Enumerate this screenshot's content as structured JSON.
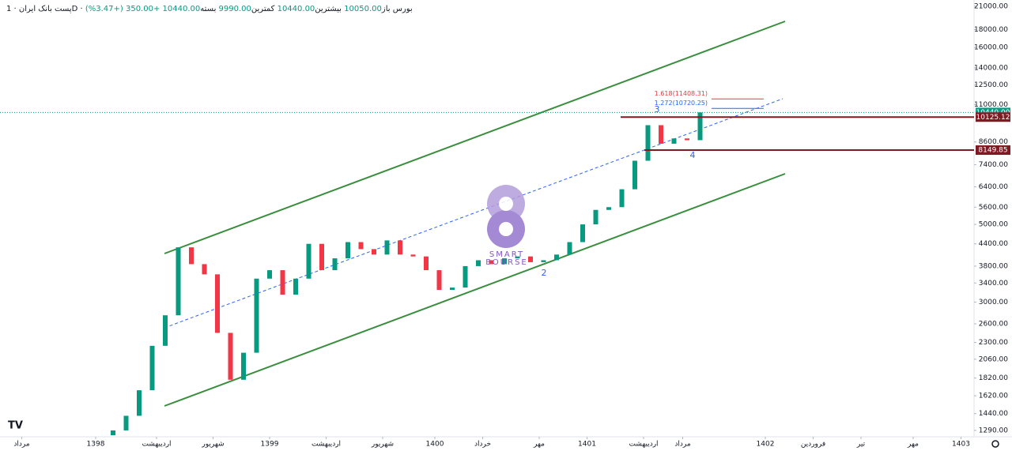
{
  "header": {
    "symbol": "پست بانک ایران",
    "interval": "1D",
    "exchange": "بورس",
    "ohlc": [
      {
        "label": "باز",
        "value": "10050.00"
      },
      {
        "label": "بیشترین",
        "value": "10440.00"
      },
      {
        "label": "کمترین",
        "value": "9990.00"
      },
      {
        "label": "بسته",
        "value": "10440.00"
      }
    ],
    "change": "+350.00 (+3.47%)"
  },
  "chart_data": {
    "type": "candlestick",
    "log_scale": true,
    "grid": false,
    "up_color": "#089981",
    "down_color": "#f23645",
    "xlim": [
      0,
      224
    ],
    "ylim": [
      1237,
      21870
    ],
    "xticks": [
      {
        "value": 5,
        "label": "مرداد"
      },
      {
        "value": 22,
        "label": "1398"
      },
      {
        "value": 36,
        "label": "اردیبهشت"
      },
      {
        "value": 49,
        "label": "شهریور"
      },
      {
        "value": 62,
        "label": "1399"
      },
      {
        "value": 75,
        "label": "اردیبهشت"
      },
      {
        "value": 88,
        "label": "شهریور"
      },
      {
        "value": 100,
        "label": "1400"
      },
      {
        "value": 111,
        "label": "خرداد"
      },
      {
        "value": 124,
        "label": "مهر"
      },
      {
        "value": 135,
        "label": "1401"
      },
      {
        "value": 148,
        "label": "اردیبهشت"
      },
      {
        "value": 157,
        "label": "مرداد"
      },
      {
        "value": 176,
        "label": "1402"
      },
      {
        "value": 187,
        "label": "فروردین"
      },
      {
        "value": 198,
        "label": "تیر"
      },
      {
        "value": 210,
        "label": "مهر"
      },
      {
        "value": 221,
        "label": "1403"
      }
    ],
    "yticks": [
      {
        "value": 21000,
        "label": "21000.00"
      },
      {
        "value": 18000,
        "label": "18000.00"
      },
      {
        "value": 16000,
        "label": "16000.00"
      },
      {
        "value": 14000,
        "label": "14000.00"
      },
      {
        "value": 12500,
        "label": "12500.00"
      },
      {
        "value": 11000,
        "label": "11000.00"
      },
      {
        "value": 8600,
        "label": "8600.00"
      },
      {
        "value": 7400,
        "label": "7400.00"
      },
      {
        "value": 6400,
        "label": "6400.00"
      },
      {
        "value": 5600,
        "label": "5600.00"
      },
      {
        "value": 5000,
        "label": "5000.00"
      },
      {
        "value": 4400,
        "label": "4400.00"
      },
      {
        "value": 3800,
        "label": "3800.00"
      },
      {
        "value": 3400,
        "label": "3400.00"
      },
      {
        "value": 3000,
        "label": "3000.00"
      },
      {
        "value": 2600,
        "label": "2600.00"
      },
      {
        "value": 2300,
        "label": "2300.00"
      },
      {
        "value": 2060,
        "label": "2060.00"
      },
      {
        "value": 1820,
        "label": "1820.00"
      },
      {
        "value": 1620,
        "label": "1620.00"
      },
      {
        "value": 1440,
        "label": "1440.00"
      },
      {
        "value": 1290,
        "label": "1290.00"
      }
    ],
    "x": [
      26,
      29,
      32,
      35,
      38,
      41,
      44,
      47,
      50,
      53,
      56,
      59,
      62,
      65,
      68,
      71,
      74,
      77,
      80,
      83,
      86,
      89,
      92,
      95,
      98,
      101,
      104,
      107,
      110,
      113,
      116,
      119,
      122,
      125,
      128,
      131,
      134,
      137,
      140,
      143,
      146,
      149,
      152,
      155,
      158,
      161
    ],
    "open": [
      1250,
      1290,
      1420,
      1680,
      2250,
      2750,
      4300,
      3850,
      3600,
      2450,
      1800,
      2150,
      3500,
      3700,
      3150,
      3500,
      4400,
      3700,
      4000,
      4450,
      4250,
      4100,
      4500,
      4100,
      4050,
      3700,
      3250,
      3300,
      3800,
      3950,
      3850,
      4000,
      4050,
      3900,
      3950,
      4100,
      4450,
      5000,
      5500,
      5600,
      6300,
      7600,
      9600,
      8500,
      8800,
      8700
    ],
    "close": [
      1290,
      1420,
      1680,
      2250,
      2750,
      4300,
      3850,
      3600,
      2450,
      1800,
      2150,
      3500,
      3700,
      3150,
      3500,
      4400,
      3700,
      4000,
      4450,
      4250,
      4100,
      4500,
      4100,
      4050,
      3700,
      3250,
      3300,
      3800,
      3950,
      3850,
      4000,
      4050,
      3900,
      3950,
      4100,
      4450,
      5000,
      5500,
      5600,
      6300,
      7600,
      9600,
      8500,
      8800,
      8700,
      10440
    ],
    "last_price": {
      "value": 10440,
      "label": "10440.00",
      "color": "#089981"
    },
    "levels": [
      {
        "value": 10125.12,
        "label": "10125.12",
        "color": "#801922"
      },
      {
        "value": 8149.85,
        "label": "8149.85",
        "color": "#801922"
      }
    ],
    "fib_levels": [
      {
        "value": 11408.31,
        "label": "1.618(11408.31)",
        "color": "#f23645"
      },
      {
        "value": 10720.25,
        "label": "1.272(10720.25)",
        "color": "#2962ff"
      }
    ],
    "annotations": [
      "2",
      "3",
      "4"
    ],
    "watermark": [
      "SMART",
      "BOURSE"
    ]
  }
}
